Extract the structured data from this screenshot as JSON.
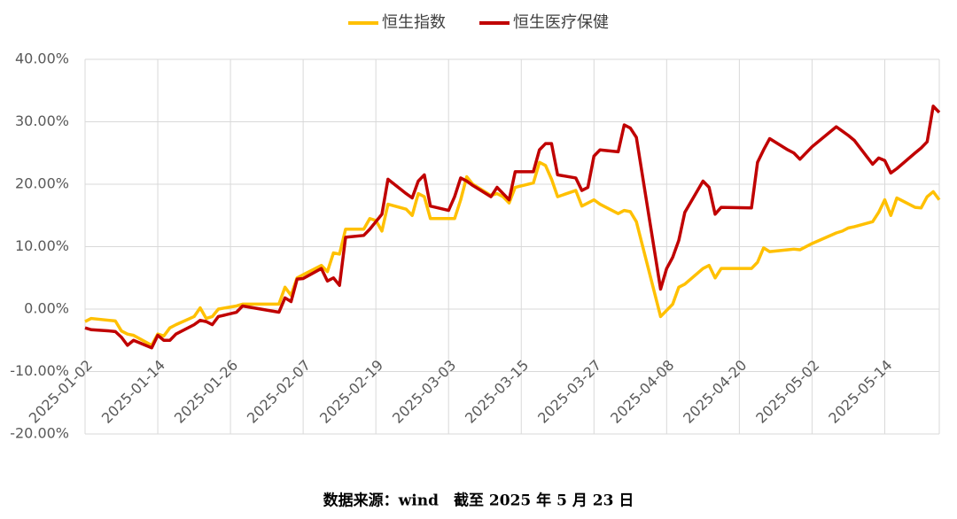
{
  "chart_data": {
    "type": "line",
    "source": "数据来源：wind　截至 2025 年 5 月 23 日",
    "x": [
      "2025-01-02",
      "2025-01-03",
      "2025-01-06",
      "2025-01-07",
      "2025-01-08",
      "2025-01-09",
      "2025-01-10",
      "2025-01-13",
      "2025-01-14",
      "2025-01-15",
      "2025-01-16",
      "2025-01-17",
      "2025-01-20",
      "2025-01-21",
      "2025-01-22",
      "2025-01-23",
      "2025-01-24",
      "2025-01-27",
      "2025-01-28",
      "2025-02-03",
      "2025-02-04",
      "2025-02-05",
      "2025-02-06",
      "2025-02-07",
      "2025-02-10",
      "2025-02-11",
      "2025-02-12",
      "2025-02-13",
      "2025-02-14",
      "2025-02-17",
      "2025-02-18",
      "2025-02-19",
      "2025-02-20",
      "2025-02-21",
      "2025-02-24",
      "2025-02-25",
      "2025-02-26",
      "2025-02-27",
      "2025-02-28",
      "2025-03-03",
      "2025-03-04",
      "2025-03-05",
      "2025-03-06",
      "2025-03-07",
      "2025-03-10",
      "2025-03-11",
      "2025-03-12",
      "2025-03-13",
      "2025-03-14",
      "2025-03-17",
      "2025-03-18",
      "2025-03-19",
      "2025-03-20",
      "2025-03-21",
      "2025-03-24",
      "2025-03-25",
      "2025-03-26",
      "2025-03-27",
      "2025-03-28",
      "2025-03-31",
      "2025-04-01",
      "2025-04-02",
      "2025-04-03",
      "2025-04-07",
      "2025-04-08",
      "2025-04-09",
      "2025-04-10",
      "2025-04-11",
      "2025-04-14",
      "2025-04-15",
      "2025-04-16",
      "2025-04-17",
      "2025-04-22",
      "2025-04-23",
      "2025-04-24",
      "2025-04-25",
      "2025-04-28",
      "2025-04-29",
      "2025-04-30",
      "2025-05-02",
      "2025-05-06",
      "2025-05-07",
      "2025-05-08",
      "2025-05-09",
      "2025-05-12",
      "2025-05-13",
      "2025-05-14",
      "2025-05-15",
      "2025-05-16",
      "2025-05-19",
      "2025-05-20",
      "2025-05-21",
      "2025-05-22",
      "2025-05-23"
    ],
    "series": [
      {
        "name": "恒生指数",
        "color": "#ffc000",
        "values": [
          -2.0,
          -1.5,
          -1.8,
          -1.9,
          -3.5,
          -4.0,
          -4.2,
          -5.8,
          -4.0,
          -4.3,
          -3.0,
          -2.5,
          -1.2,
          0.2,
          -1.5,
          -1.2,
          0.0,
          0.5,
          0.8,
          0.8,
          3.5,
          2.2,
          5.0,
          5.5,
          7.0,
          6.0,
          9.0,
          8.8,
          12.8,
          12.8,
          14.5,
          14.2,
          12.5,
          16.8,
          16.0,
          15.0,
          18.5,
          18.0,
          14.5,
          14.5,
          14.5,
          17.5,
          21.2,
          20.0,
          18.2,
          18.5,
          18.0,
          17.0,
          19.5,
          20.2,
          23.5,
          23.0,
          20.8,
          18.0,
          19.0,
          16.5,
          17.0,
          17.5,
          16.8,
          15.3,
          15.8,
          15.6,
          14.0,
          -1.2,
          -0.2,
          0.8,
          3.5,
          4.0,
          6.5,
          7.0,
          5.0,
          6.5,
          6.5,
          7.5,
          9.8,
          9.2,
          9.5,
          9.6,
          9.5,
          10.5,
          12.2,
          12.5,
          13.0,
          13.2,
          14.0,
          15.5,
          17.5,
          15.0,
          17.8,
          16.3,
          16.2,
          18.0,
          18.8,
          17.5
        ]
      },
      {
        "name": "恒生医疗保健",
        "color": "#c00000",
        "values": [
          -3.0,
          -3.3,
          -3.5,
          -3.6,
          -4.5,
          -5.8,
          -5.0,
          -6.2,
          -4.2,
          -5.0,
          -5.0,
          -4.0,
          -2.5,
          -1.8,
          -2.0,
          -2.5,
          -1.2,
          -0.5,
          0.5,
          -0.5,
          1.8,
          1.2,
          4.8,
          4.9,
          6.5,
          4.5,
          5.0,
          3.8,
          11.5,
          11.8,
          12.8,
          14.0,
          15.2,
          20.8,
          18.5,
          17.8,
          20.5,
          21.5,
          16.5,
          15.8,
          18.0,
          21.0,
          20.5,
          19.8,
          18.0,
          19.5,
          18.5,
          17.5,
          22.0,
          22.0,
          25.5,
          26.5,
          26.5,
          21.5,
          21.0,
          19.0,
          19.5,
          24.5,
          25.5,
          25.2,
          29.5,
          29.0,
          27.5,
          3.2,
          6.5,
          8.3,
          11.0,
          15.5,
          20.5,
          19.5,
          15.2,
          16.3,
          16.2,
          23.5,
          25.5,
          27.3,
          25.5,
          25.0,
          24.0,
          26.0,
          29.2,
          28.5,
          27.8,
          27.0,
          23.2,
          24.2,
          23.8,
          21.8,
          22.5,
          25.0,
          25.8,
          26.8,
          32.5,
          31.5
        ]
      }
    ],
    "xlim": [
      "2025-01-02",
      "2025-05-23"
    ],
    "xticks": [
      "2025-01-02",
      "2025-01-14",
      "2025-01-26",
      "2025-02-07",
      "2025-02-19",
      "2025-03-03",
      "2025-03-15",
      "2025-03-27",
      "2025-04-08",
      "2025-04-20",
      "2025-05-02",
      "2025-05-14"
    ],
    "ylim": [
      -20,
      40
    ],
    "yticks": [
      {
        "value": -20,
        "label": "-20.00%"
      },
      {
        "value": -10,
        "label": "-10.00%"
      },
      {
        "value": 0,
        "label": "0.00%"
      },
      {
        "value": 10,
        "label": "10.00%"
      },
      {
        "value": 20,
        "label": "20.00%"
      },
      {
        "value": 30,
        "label": "30.00%"
      },
      {
        "value": 40,
        "label": "40.00%"
      }
    ],
    "grid": true
  }
}
